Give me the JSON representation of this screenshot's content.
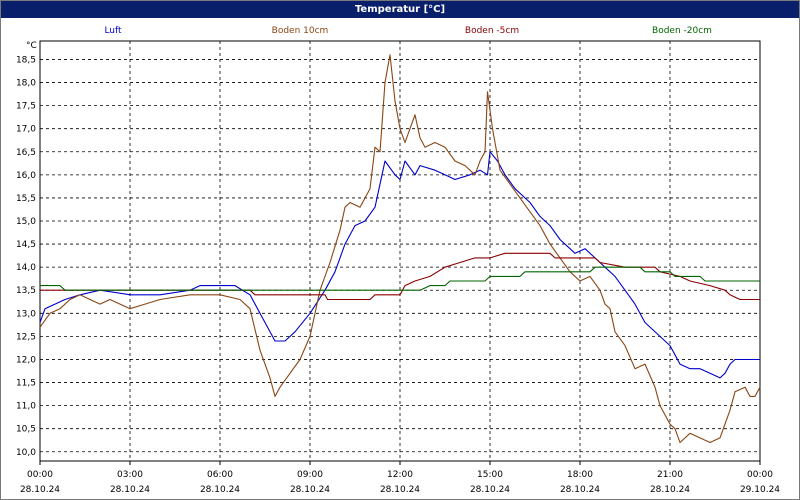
{
  "chart_data": {
    "type": "line",
    "title": "Temperatur [°C]",
    "ylabel": "°C",
    "ylim": [
      9.8,
      18.9
    ],
    "xlim": [
      "28.10.24 00:00",
      "29.10.24 00:00"
    ],
    "grid": true,
    "legend_placement": "top",
    "y_ticks": [
      "10,0",
      "10,5",
      "11,0",
      "11,5",
      "12,0",
      "12,5",
      "13,0",
      "13,5",
      "14,0",
      "14,5",
      "15,0",
      "15,5",
      "16,0",
      "16,5",
      "17,0",
      "17,5",
      "18,0",
      "18,5"
    ],
    "x_ticks": [
      {
        "time": "00:00",
        "date": "28.10.24"
      },
      {
        "time": "03:00",
        "date": "28.10.24"
      },
      {
        "time": "06:00",
        "date": "28.10.24"
      },
      {
        "time": "09:00",
        "date": "28.10.24"
      },
      {
        "time": "12:00",
        "date": "28.10.24"
      },
      {
        "time": "15:00",
        "date": "28.10.24"
      },
      {
        "time": "18:00",
        "date": "28.10.24"
      },
      {
        "time": "21:00",
        "date": "28.10.24"
      },
      {
        "time": "00:00",
        "date": "29.10.24"
      }
    ],
    "series": [
      {
        "name": "Luft",
        "color": "#0000cc",
        "points": [
          [
            "00:00",
            12.8
          ],
          [
            "00:10",
            13.1
          ],
          [
            "00:30",
            13.2
          ],
          [
            "00:50",
            13.3
          ],
          [
            "01:20",
            13.4
          ],
          [
            "02:00",
            13.5
          ],
          [
            "03:00",
            13.4
          ],
          [
            "04:00",
            13.4
          ],
          [
            "05:00",
            13.5
          ],
          [
            "05:20",
            13.6
          ],
          [
            "06:30",
            13.6
          ],
          [
            "07:00",
            13.4
          ],
          [
            "07:30",
            12.8
          ],
          [
            "07:50",
            12.4
          ],
          [
            "08:10",
            12.4
          ],
          [
            "08:30",
            12.6
          ],
          [
            "09:00",
            13.0
          ],
          [
            "09:30",
            13.5
          ],
          [
            "09:50",
            13.9
          ],
          [
            "10:10",
            14.5
          ],
          [
            "10:30",
            14.9
          ],
          [
            "10:50",
            15.0
          ],
          [
            "11:10",
            15.3
          ],
          [
            "11:30",
            16.3
          ],
          [
            "11:50",
            16.0
          ],
          [
            "12:00",
            15.9
          ],
          [
            "12:10",
            16.3
          ],
          [
            "12:30",
            16.0
          ],
          [
            "12:40",
            16.2
          ],
          [
            "13:10",
            16.1
          ],
          [
            "13:30",
            16.0
          ],
          [
            "13:50",
            15.9
          ],
          [
            "14:20",
            16.0
          ],
          [
            "14:40",
            16.1
          ],
          [
            "14:55",
            16.0
          ],
          [
            "15:00",
            16.5
          ],
          [
            "15:15",
            16.3
          ],
          [
            "15:30",
            16.0
          ],
          [
            "15:50",
            15.7
          ],
          [
            "16:20",
            15.4
          ],
          [
            "16:40",
            15.1
          ],
          [
            "17:00",
            14.9
          ],
          [
            "17:20",
            14.6
          ],
          [
            "17:40",
            14.4
          ],
          [
            "17:50",
            14.3
          ],
          [
            "18:10",
            14.4
          ],
          [
            "18:30",
            14.2
          ],
          [
            "18:50",
            14.0
          ],
          [
            "19:10",
            13.8
          ],
          [
            "19:30",
            13.5
          ],
          [
            "19:50",
            13.2
          ],
          [
            "20:10",
            12.8
          ],
          [
            "20:40",
            12.5
          ],
          [
            "21:00",
            12.3
          ],
          [
            "21:10",
            12.1
          ],
          [
            "21:20",
            11.9
          ],
          [
            "21:40",
            11.8
          ],
          [
            "22:00",
            11.8
          ],
          [
            "22:20",
            11.7
          ],
          [
            "22:40",
            11.6
          ],
          [
            "22:50",
            11.7
          ],
          [
            "23:00",
            11.9
          ],
          [
            "23:10",
            12.0
          ],
          [
            "24:00",
            12.0
          ]
        ]
      },
      {
        "name": "Boden 10cm",
        "color": "#8b4513",
        "points": [
          [
            "00:00",
            12.7
          ],
          [
            "00:20",
            13.0
          ],
          [
            "00:40",
            13.1
          ],
          [
            "01:00",
            13.3
          ],
          [
            "01:20",
            13.4
          ],
          [
            "01:40",
            13.3
          ],
          [
            "02:00",
            13.2
          ],
          [
            "02:20",
            13.3
          ],
          [
            "02:40",
            13.2
          ],
          [
            "03:00",
            13.1
          ],
          [
            "03:30",
            13.2
          ],
          [
            "04:00",
            13.3
          ],
          [
            "05:00",
            13.4
          ],
          [
            "06:00",
            13.4
          ],
          [
            "06:40",
            13.3
          ],
          [
            "07:00",
            13.1
          ],
          [
            "07:20",
            12.2
          ],
          [
            "07:40",
            11.6
          ],
          [
            "07:50",
            11.2
          ],
          [
            "08:00",
            11.4
          ],
          [
            "08:20",
            11.7
          ],
          [
            "08:40",
            12.0
          ],
          [
            "09:00",
            12.5
          ],
          [
            "09:20",
            13.5
          ],
          [
            "09:40",
            14.1
          ],
          [
            "10:00",
            14.8
          ],
          [
            "10:10",
            15.3
          ],
          [
            "10:20",
            15.4
          ],
          [
            "10:40",
            15.3
          ],
          [
            "11:00",
            15.7
          ],
          [
            "11:10",
            16.6
          ],
          [
            "11:20",
            16.5
          ],
          [
            "11:30",
            18.0
          ],
          [
            "11:40",
            18.6
          ],
          [
            "11:50",
            17.6
          ],
          [
            "12:00",
            17.0
          ],
          [
            "12:10",
            16.7
          ],
          [
            "12:20",
            17.0
          ],
          [
            "12:30",
            17.3
          ],
          [
            "12:40",
            16.8
          ],
          [
            "12:50",
            16.6
          ],
          [
            "13:10",
            16.7
          ],
          [
            "13:30",
            16.6
          ],
          [
            "13:50",
            16.3
          ],
          [
            "14:10",
            16.2
          ],
          [
            "14:30",
            16.0
          ],
          [
            "14:40",
            16.3
          ],
          [
            "14:50",
            16.5
          ],
          [
            "14:55",
            17.8
          ],
          [
            "15:05",
            17.0
          ],
          [
            "15:20",
            16.1
          ],
          [
            "15:40",
            15.8
          ],
          [
            "16:00",
            15.5
          ],
          [
            "16:20",
            15.2
          ],
          [
            "16:40",
            14.9
          ],
          [
            "16:50",
            14.7
          ],
          [
            "17:00",
            14.5
          ],
          [
            "17:20",
            14.2
          ],
          [
            "17:40",
            13.9
          ],
          [
            "18:00",
            13.7
          ],
          [
            "18:20",
            13.8
          ],
          [
            "18:40",
            13.5
          ],
          [
            "18:50",
            13.2
          ],
          [
            "19:00",
            13.1
          ],
          [
            "19:10",
            12.6
          ],
          [
            "19:30",
            12.3
          ],
          [
            "19:50",
            11.8
          ],
          [
            "20:10",
            11.9
          ],
          [
            "20:30",
            11.4
          ],
          [
            "20:40",
            11.0
          ],
          [
            "21:00",
            10.6
          ],
          [
            "21:10",
            10.5
          ],
          [
            "21:20",
            10.2
          ],
          [
            "21:40",
            10.4
          ],
          [
            "22:00",
            10.3
          ],
          [
            "22:20",
            10.2
          ],
          [
            "22:40",
            10.3
          ],
          [
            "23:00",
            10.9
          ],
          [
            "23:10",
            11.3
          ],
          [
            "23:30",
            11.4
          ],
          [
            "23:40",
            11.2
          ],
          [
            "23:50",
            11.2
          ],
          [
            "24:00",
            11.4
          ]
        ]
      },
      {
        "name": "Boden -5cm",
        "color": "#8b0000",
        "points": [
          [
            "00:00",
            13.5
          ],
          [
            "07:00",
            13.5
          ],
          [
            "07:10",
            13.4
          ],
          [
            "09:30",
            13.4
          ],
          [
            "09:35",
            13.3
          ],
          [
            "11:00",
            13.3
          ],
          [
            "11:10",
            13.4
          ],
          [
            "12:00",
            13.4
          ],
          [
            "12:10",
            13.6
          ],
          [
            "12:30",
            13.7
          ],
          [
            "13:00",
            13.8
          ],
          [
            "13:30",
            14.0
          ],
          [
            "14:00",
            14.1
          ],
          [
            "14:30",
            14.2
          ],
          [
            "15:00",
            14.2
          ],
          [
            "15:30",
            14.3
          ],
          [
            "17:00",
            14.3
          ],
          [
            "17:10",
            14.2
          ],
          [
            "18:30",
            14.2
          ],
          [
            "18:40",
            14.1
          ],
          [
            "19:30",
            14.0
          ],
          [
            "20:30",
            14.0
          ],
          [
            "20:40",
            13.9
          ],
          [
            "21:20",
            13.8
          ],
          [
            "21:40",
            13.7
          ],
          [
            "22:20",
            13.6
          ],
          [
            "22:50",
            13.5
          ],
          [
            "23:00",
            13.4
          ],
          [
            "23:20",
            13.3
          ],
          [
            "24:00",
            13.3
          ]
        ]
      },
      {
        "name": "Boden -20cm",
        "color": "#006400",
        "points": [
          [
            "00:00",
            13.6
          ],
          [
            "00:40",
            13.6
          ],
          [
            "00:50",
            13.5
          ],
          [
            "12:40",
            13.5
          ],
          [
            "13:00",
            13.6
          ],
          [
            "13:30",
            13.6
          ],
          [
            "13:40",
            13.7
          ],
          [
            "14:50",
            13.7
          ],
          [
            "15:00",
            13.8
          ],
          [
            "16:00",
            13.8
          ],
          [
            "16:10",
            13.9
          ],
          [
            "18:20",
            13.9
          ],
          [
            "18:30",
            14.0
          ],
          [
            "20:00",
            14.0
          ],
          [
            "20:10",
            13.9
          ],
          [
            "21:00",
            13.9
          ],
          [
            "21:10",
            13.8
          ],
          [
            "22:00",
            13.8
          ],
          [
            "22:10",
            13.7
          ],
          [
            "24:00",
            13.7
          ]
        ]
      }
    ]
  }
}
